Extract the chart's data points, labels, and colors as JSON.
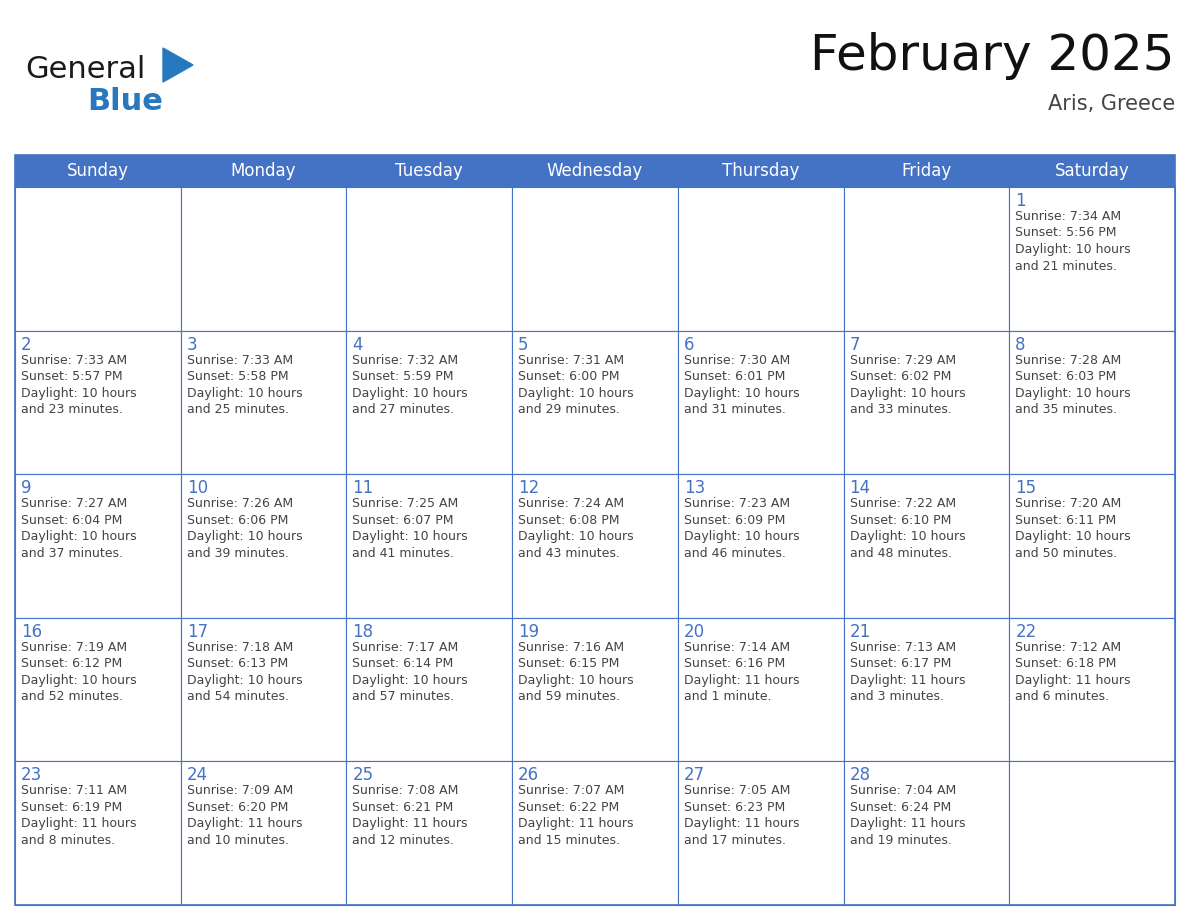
{
  "title": "February 2025",
  "subtitle": "Aris, Greece",
  "header_bg_color": "#4472C4",
  "header_text_color": "#FFFFFF",
  "cell_bg_color": "#FFFFFF",
  "grid_color": "#4472C4",
  "day_number_color": "#4472C4",
  "cell_text_color": "#444444",
  "days_of_week": [
    "Sunday",
    "Monday",
    "Tuesday",
    "Wednesday",
    "Thursday",
    "Friday",
    "Saturday"
  ],
  "calendar_data": [
    [
      null,
      null,
      null,
      null,
      null,
      null,
      {
        "day": 1,
        "sunrise": "7:34 AM",
        "sunset": "5:56 PM",
        "daylight": "10 hours\nand 21 minutes."
      }
    ],
    [
      {
        "day": 2,
        "sunrise": "7:33 AM",
        "sunset": "5:57 PM",
        "daylight": "10 hours\nand 23 minutes."
      },
      {
        "day": 3,
        "sunrise": "7:33 AM",
        "sunset": "5:58 PM",
        "daylight": "10 hours\nand 25 minutes."
      },
      {
        "day": 4,
        "sunrise": "7:32 AM",
        "sunset": "5:59 PM",
        "daylight": "10 hours\nand 27 minutes."
      },
      {
        "day": 5,
        "sunrise": "7:31 AM",
        "sunset": "6:00 PM",
        "daylight": "10 hours\nand 29 minutes."
      },
      {
        "day": 6,
        "sunrise": "7:30 AM",
        "sunset": "6:01 PM",
        "daylight": "10 hours\nand 31 minutes."
      },
      {
        "day": 7,
        "sunrise": "7:29 AM",
        "sunset": "6:02 PM",
        "daylight": "10 hours\nand 33 minutes."
      },
      {
        "day": 8,
        "sunrise": "7:28 AM",
        "sunset": "6:03 PM",
        "daylight": "10 hours\nand 35 minutes."
      }
    ],
    [
      {
        "day": 9,
        "sunrise": "7:27 AM",
        "sunset": "6:04 PM",
        "daylight": "10 hours\nand 37 minutes."
      },
      {
        "day": 10,
        "sunrise": "7:26 AM",
        "sunset": "6:06 PM",
        "daylight": "10 hours\nand 39 minutes."
      },
      {
        "day": 11,
        "sunrise": "7:25 AM",
        "sunset": "6:07 PM",
        "daylight": "10 hours\nand 41 minutes."
      },
      {
        "day": 12,
        "sunrise": "7:24 AM",
        "sunset": "6:08 PM",
        "daylight": "10 hours\nand 43 minutes."
      },
      {
        "day": 13,
        "sunrise": "7:23 AM",
        "sunset": "6:09 PM",
        "daylight": "10 hours\nand 46 minutes."
      },
      {
        "day": 14,
        "sunrise": "7:22 AM",
        "sunset": "6:10 PM",
        "daylight": "10 hours\nand 48 minutes."
      },
      {
        "day": 15,
        "sunrise": "7:20 AM",
        "sunset": "6:11 PM",
        "daylight": "10 hours\nand 50 minutes."
      }
    ],
    [
      {
        "day": 16,
        "sunrise": "7:19 AM",
        "sunset": "6:12 PM",
        "daylight": "10 hours\nand 52 minutes."
      },
      {
        "day": 17,
        "sunrise": "7:18 AM",
        "sunset": "6:13 PM",
        "daylight": "10 hours\nand 54 minutes."
      },
      {
        "day": 18,
        "sunrise": "7:17 AM",
        "sunset": "6:14 PM",
        "daylight": "10 hours\nand 57 minutes."
      },
      {
        "day": 19,
        "sunrise": "7:16 AM",
        "sunset": "6:15 PM",
        "daylight": "10 hours\nand 59 minutes."
      },
      {
        "day": 20,
        "sunrise": "7:14 AM",
        "sunset": "6:16 PM",
        "daylight": "11 hours\nand 1 minute."
      },
      {
        "day": 21,
        "sunrise": "7:13 AM",
        "sunset": "6:17 PM",
        "daylight": "11 hours\nand 3 minutes."
      },
      {
        "day": 22,
        "sunrise": "7:12 AM",
        "sunset": "6:18 PM",
        "daylight": "11 hours\nand 6 minutes."
      }
    ],
    [
      {
        "day": 23,
        "sunrise": "7:11 AM",
        "sunset": "6:19 PM",
        "daylight": "11 hours\nand 8 minutes."
      },
      {
        "day": 24,
        "sunrise": "7:09 AM",
        "sunset": "6:20 PM",
        "daylight": "11 hours\nand 10 minutes."
      },
      {
        "day": 25,
        "sunrise": "7:08 AM",
        "sunset": "6:21 PM",
        "daylight": "11 hours\nand 12 minutes."
      },
      {
        "day": 26,
        "sunrise": "7:07 AM",
        "sunset": "6:22 PM",
        "daylight": "11 hours\nand 15 minutes."
      },
      {
        "day": 27,
        "sunrise": "7:05 AM",
        "sunset": "6:23 PM",
        "daylight": "11 hours\nand 17 minutes."
      },
      {
        "day": 28,
        "sunrise": "7:04 AM",
        "sunset": "6:24 PM",
        "daylight": "11 hours\nand 19 minutes."
      },
      null
    ]
  ],
  "logo_color_general": "#1a1a1a",
  "logo_color_blue": "#2878C0",
  "logo_triangle_color": "#2878C0",
  "title_fontsize": 36,
  "subtitle_fontsize": 15,
  "header_fontsize": 12,
  "day_num_fontsize": 12,
  "cell_fontsize": 9
}
